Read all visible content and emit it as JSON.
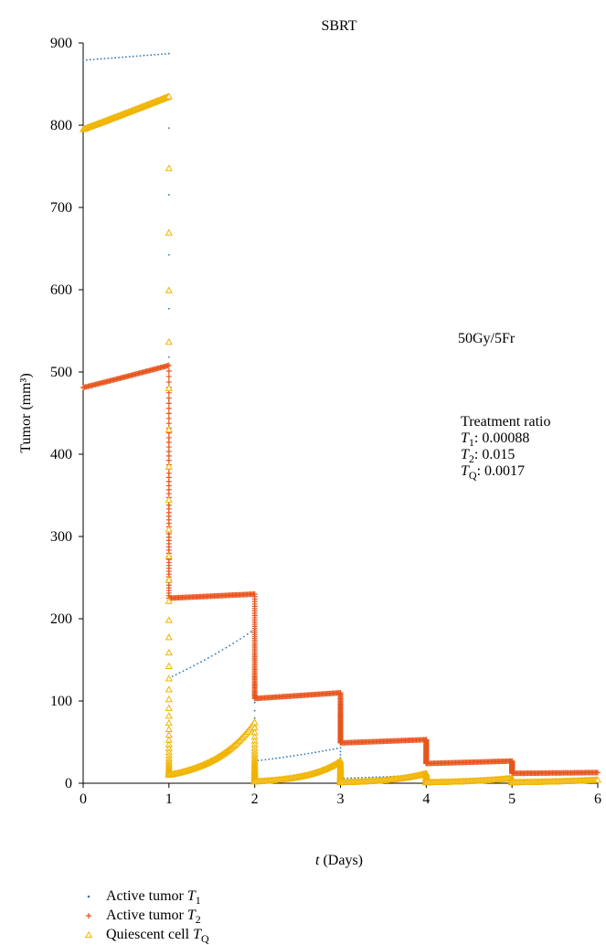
{
  "chart_data": {
    "type": "line",
    "title": "SBRT",
    "xlabel_italic": "t",
    "xlabel_rest": " (Days)",
    "ylabel": "Tumor (mm³)",
    "xlim": [
      0,
      6
    ],
    "ylim": [
      0,
      900
    ],
    "xticks": [
      "0",
      "1",
      "2",
      "3",
      "4",
      "5",
      "6"
    ],
    "yticks": [
      "0",
      "100",
      "200",
      "300",
      "400",
      "500",
      "600",
      "700",
      "800",
      "900"
    ],
    "grid": false,
    "legend_position": "below",
    "annotations": {
      "dose": "50Gy/5Fr",
      "ratio_title": "Treatment ratio",
      "ratio_lines": [
        {
          "sym": "T",
          "sub": "1",
          "value": ": 0.00088"
        },
        {
          "sym": "T",
          "sub": "2",
          "value": ": 0.015"
        },
        {
          "sym": "T",
          "sub": "Q",
          "value": ": 0.0017"
        }
      ]
    },
    "series": [
      {
        "name_text": "Active tumor ",
        "name_sym": "T",
        "name_sub": "1",
        "color": "#2e75b6",
        "marker": "dot",
        "segments": [
          {
            "t0": 0,
            "t1": 1,
            "y0": 879,
            "y1": 887
          },
          {
            "t0": 1,
            "t1": 2,
            "y0": 128,
            "y1": 187
          },
          {
            "t0": 2,
            "t1": 3,
            "y0": 27,
            "y1": 43
          },
          {
            "t0": 3,
            "t1": 4,
            "y0": 6,
            "y1": 10
          },
          {
            "t0": 4,
            "t1": 5,
            "y0": 2,
            "y1": 3
          },
          {
            "t0": 5,
            "t1": 6,
            "y0": 1,
            "y1": 1
          }
        ]
      },
      {
        "name_text": "Active tumor ",
        "name_sym": "T",
        "name_sub": "2",
        "color": "#e8541e",
        "marker": "plus",
        "segments": [
          {
            "t0": 0,
            "t1": 1,
            "y0": 481,
            "y1": 508
          },
          {
            "t0": 1,
            "t1": 2,
            "y0": 225,
            "y1": 230
          },
          {
            "t0": 2,
            "t1": 3,
            "y0": 103,
            "y1": 110
          },
          {
            "t0": 3,
            "t1": 4,
            "y0": 49,
            "y1": 53
          },
          {
            "t0": 4,
            "t1": 5,
            "y0": 24,
            "y1": 27
          },
          {
            "t0": 5,
            "t1": 6,
            "y0": 12,
            "y1": 13
          }
        ]
      },
      {
        "name_text": "Quiescent cell ",
        "name_sym": "T",
        "name_sub": "Q",
        "color": "#f0b400",
        "marker": "triangle",
        "segments": [
          {
            "t0": 0,
            "t1": 1,
            "y0": 795,
            "y1": 835
          },
          {
            "t0": 1,
            "t1": 2,
            "y0": 10,
            "y1": 74
          },
          {
            "t0": 2,
            "t1": 3,
            "y0": 2,
            "y1": 27
          },
          {
            "t0": 3,
            "t1": 4,
            "y0": 1,
            "y1": 12
          },
          {
            "t0": 4,
            "t1": 5,
            "y0": 1,
            "y1": 6
          },
          {
            "t0": 5,
            "t1": 6,
            "y0": 1,
            "y1": 4
          }
        ]
      }
    ]
  }
}
